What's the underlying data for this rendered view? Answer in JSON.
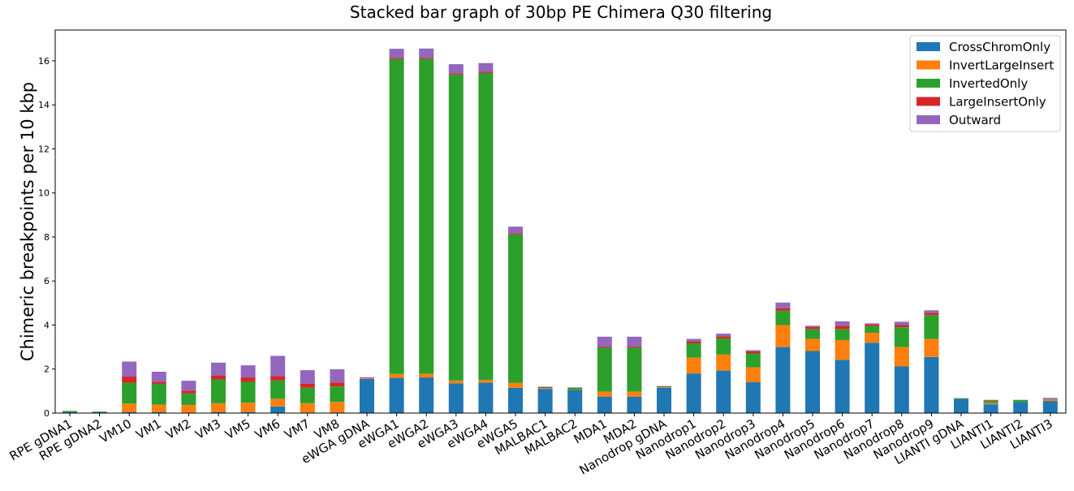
{
  "chart_data": {
    "type": "bar",
    "stacked": true,
    "title": "Stacked bar graph of 30bp PE Chimera Q30 filtering",
    "xlabel": "",
    "ylabel": "Chimeric breakpoints per 10 kbp",
    "ylim": [
      0,
      17.4
    ],
    "yticks": [
      0,
      2,
      4,
      6,
      8,
      10,
      12,
      14,
      16
    ],
    "legend_position": "top-right",
    "grid": false,
    "categories": [
      "RPE gDNA1",
      "RPE gDNA2",
      "VM10",
      "VM1",
      "VM2",
      "VM3",
      "VM5",
      "VM6",
      "VM7",
      "VM8",
      "eWGA gDNA",
      "eWGA1",
      "eWGA2",
      "eWGA3",
      "eWGA4",
      "eWGA5",
      "MALBAC1",
      "MALBAC2",
      "MDA1",
      "MDA2",
      "Nanodrop gDNA",
      "Nanodrop1",
      "Nanodrop2",
      "Nanodrop3",
      "Nanodrop4",
      "Nanodrop5",
      "Nanodrop6",
      "Nanodrop7",
      "Nanodrop8",
      "Nanodrop9",
      "LIANTI gDNA",
      "LIANTI1",
      "LIANTI2",
      "LIANTI3"
    ],
    "series": [
      {
        "name": "CrossChromOnly",
        "color": "#1f77b4",
        "values": [
          0.05,
          0.04,
          0.05,
          0.05,
          0.02,
          0.05,
          0.05,
          0.3,
          0.03,
          0.03,
          1.55,
          1.6,
          1.62,
          1.35,
          1.38,
          1.15,
          1.1,
          1.05,
          0.75,
          0.75,
          1.15,
          1.8,
          1.93,
          1.4,
          3.0,
          2.82,
          2.42,
          3.2,
          2.12,
          2.55,
          0.65,
          0.4,
          0.5,
          0.55
        ]
      },
      {
        "name": "InvertLargeInsert",
        "color": "#ff7f0e",
        "values": [
          0.0,
          0.0,
          0.38,
          0.33,
          0.35,
          0.4,
          0.42,
          0.35,
          0.42,
          0.48,
          0.03,
          0.18,
          0.17,
          0.13,
          0.12,
          0.22,
          0.03,
          0.02,
          0.22,
          0.22,
          0.02,
          0.72,
          0.73,
          0.68,
          1.0,
          0.55,
          0.9,
          0.45,
          0.88,
          0.82,
          0.0,
          0.05,
          0.0,
          0.05
        ]
      },
      {
        "name": "InvertedOnly",
        "color": "#2ca02c",
        "values": [
          0.05,
          0.03,
          0.95,
          0.95,
          0.52,
          1.08,
          0.95,
          0.83,
          0.7,
          0.7,
          0.0,
          14.3,
          14.3,
          13.9,
          13.95,
          6.75,
          0.03,
          0.08,
          2.0,
          2.0,
          0.03,
          0.65,
          0.73,
          0.63,
          0.65,
          0.45,
          0.5,
          0.3,
          0.9,
          1.08,
          0.02,
          0.1,
          0.1,
          0.02
        ]
      },
      {
        "name": "LargeInsertOnly",
        "color": "#d62728",
        "values": [
          0.0,
          0.0,
          0.28,
          0.1,
          0.13,
          0.18,
          0.2,
          0.2,
          0.18,
          0.18,
          0.02,
          0.05,
          0.05,
          0.05,
          0.05,
          0.05,
          0.02,
          0.0,
          0.05,
          0.05,
          0.02,
          0.1,
          0.1,
          0.1,
          0.12,
          0.1,
          0.15,
          0.08,
          0.1,
          0.1,
          0.01,
          0.02,
          0.0,
          0.02
        ]
      },
      {
        "name": "Outward",
        "color": "#9467bd",
        "values": [
          0.0,
          0.0,
          0.68,
          0.45,
          0.45,
          0.58,
          0.55,
          0.92,
          0.62,
          0.6,
          0.03,
          0.42,
          0.42,
          0.42,
          0.4,
          0.3,
          0.02,
          0.02,
          0.45,
          0.45,
          0.01,
          0.1,
          0.12,
          0.05,
          0.25,
          0.05,
          0.2,
          0.05,
          0.15,
          0.12,
          0.0,
          0.03,
          0.0,
          0.05
        ]
      }
    ]
  }
}
